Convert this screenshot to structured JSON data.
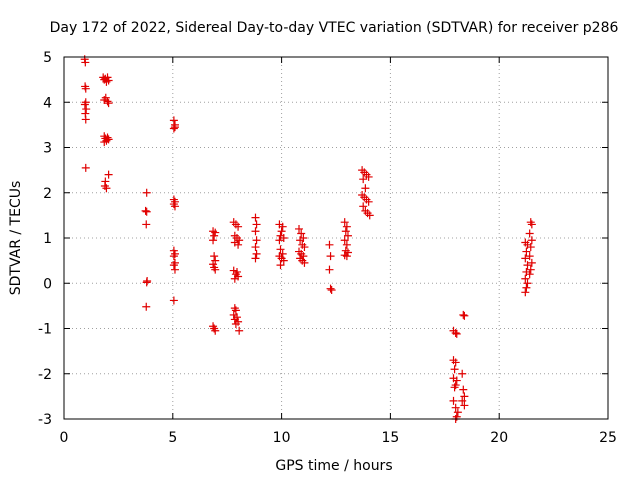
{
  "chart_data": {
    "type": "scatter",
    "title": "Day 172 of 2022, Sidereal Day-to-day VTEC variation (SDTVAR) for receiver p286",
    "xlabel": "GPS time / hours",
    "ylabel": "SDTVAR / TECUs",
    "xlim": [
      0,
      25
    ],
    "ylim": [
      -3,
      5
    ],
    "xticks": [
      0,
      5,
      10,
      15,
      20,
      25
    ],
    "yticks": [
      -3,
      -2,
      -1,
      0,
      1,
      2,
      3,
      4,
      5
    ],
    "xtick_labels": [
      "0",
      "5",
      "10",
      "15",
      "20",
      "25"
    ],
    "ytick_labels": [
      "-3",
      "-2",
      "-1",
      "0",
      "1",
      "2",
      "3",
      "4",
      "5"
    ],
    "grid": true,
    "marker": "+",
    "color": "#e00000",
    "series": [
      {
        "name": "p286",
        "points": [
          [
            0.95,
            4.95
          ],
          [
            0.98,
            4.88
          ],
          [
            1.0,
            4.3
          ],
          [
            0.97,
            4.35
          ],
          [
            1.0,
            4.0
          ],
          [
            0.96,
            3.95
          ],
          [
            1.02,
            3.85
          ],
          [
            0.98,
            3.75
          ],
          [
            1.0,
            3.62
          ],
          [
            1.0,
            2.55
          ],
          [
            1.8,
            4.55
          ],
          [
            1.85,
            4.5
          ],
          [
            1.9,
            4.52
          ],
          [
            1.95,
            4.45
          ],
          [
            2.0,
            4.55
          ],
          [
            2.05,
            4.48
          ],
          [
            1.85,
            4.05
          ],
          [
            1.92,
            4.1
          ],
          [
            2.0,
            4.02
          ],
          [
            2.05,
            3.98
          ],
          [
            1.85,
            3.25
          ],
          [
            1.9,
            3.2
          ],
          [
            1.95,
            3.15
          ],
          [
            2.0,
            3.22
          ],
          [
            2.05,
            3.18
          ],
          [
            1.85,
            3.12
          ],
          [
            2.05,
            2.4
          ],
          [
            1.9,
            2.25
          ],
          [
            1.88,
            2.15
          ],
          [
            1.95,
            2.1
          ],
          [
            3.8,
            2.0
          ],
          [
            3.75,
            1.6
          ],
          [
            3.8,
            1.58
          ],
          [
            3.78,
            1.3
          ],
          [
            3.82,
            0.05
          ],
          [
            3.8,
            0.02
          ],
          [
            3.78,
            -0.52
          ],
          [
            5.05,
            3.6
          ],
          [
            5.1,
            3.5
          ],
          [
            5.05,
            3.42
          ],
          [
            5.1,
            3.45
          ],
          [
            5.05,
            1.85
          ],
          [
            5.1,
            1.8
          ],
          [
            5.05,
            1.75
          ],
          [
            5.1,
            1.7
          ],
          [
            5.05,
            0.72
          ],
          [
            5.1,
            0.65
          ],
          [
            5.05,
            0.6
          ],
          [
            5.1,
            0.45
          ],
          [
            5.05,
            0.4
          ],
          [
            5.1,
            0.3
          ],
          [
            5.05,
            -0.38
          ],
          [
            6.85,
            1.15
          ],
          [
            6.95,
            1.12
          ],
          [
            6.9,
            1.05
          ],
          [
            6.85,
            0.95
          ],
          [
            6.9,
            0.6
          ],
          [
            6.95,
            0.5
          ],
          [
            6.85,
            0.42
          ],
          [
            6.9,
            0.35
          ],
          [
            6.95,
            0.3
          ],
          [
            6.85,
            -0.95
          ],
          [
            6.9,
            -1.0
          ],
          [
            6.95,
            -1.05
          ],
          [
            7.8,
            1.35
          ],
          [
            7.9,
            1.3
          ],
          [
            8.0,
            1.25
          ],
          [
            7.85,
            1.05
          ],
          [
            7.95,
            1.0
          ],
          [
            8.05,
            0.95
          ],
          [
            7.85,
            0.9
          ],
          [
            8.0,
            0.85
          ],
          [
            7.8,
            0.28
          ],
          [
            7.9,
            0.2
          ],
          [
            8.0,
            0.15
          ],
          [
            7.85,
            0.1
          ],
          [
            7.95,
            0.25
          ],
          [
            7.85,
            -0.55
          ],
          [
            7.9,
            -0.6
          ],
          [
            7.8,
            -0.7
          ],
          [
            7.95,
            -0.75
          ],
          [
            7.85,
            -0.8
          ],
          [
            8.0,
            -0.85
          ],
          [
            7.9,
            -0.9
          ],
          [
            8.05,
            -1.05
          ],
          [
            8.8,
            1.45
          ],
          [
            8.85,
            1.3
          ],
          [
            8.8,
            1.15
          ],
          [
            8.85,
            0.95
          ],
          [
            8.8,
            0.8
          ],
          [
            8.85,
            0.65
          ],
          [
            8.8,
            0.55
          ],
          [
            9.9,
            1.3
          ],
          [
            10.05,
            1.25
          ],
          [
            10.0,
            1.15
          ],
          [
            9.95,
            1.05
          ],
          [
            10.1,
            1.0
          ],
          [
            9.9,
            0.95
          ],
          [
            9.95,
            0.75
          ],
          [
            10.05,
            0.65
          ],
          [
            9.9,
            0.6
          ],
          [
            10.0,
            0.55
          ],
          [
            10.1,
            0.5
          ],
          [
            9.95,
            0.4
          ],
          [
            10.8,
            1.2
          ],
          [
            10.9,
            1.1
          ],
          [
            11.0,
            1.0
          ],
          [
            10.85,
            0.95
          ],
          [
            10.95,
            0.85
          ],
          [
            11.05,
            0.8
          ],
          [
            10.8,
            0.7
          ],
          [
            10.9,
            0.65
          ],
          [
            11.0,
            0.6
          ],
          [
            10.85,
            0.55
          ],
          [
            10.95,
            0.5
          ],
          [
            11.05,
            0.45
          ],
          [
            12.2,
            0.85
          ],
          [
            12.25,
            0.6
          ],
          [
            12.2,
            0.3
          ],
          [
            12.25,
            -0.12
          ],
          [
            12.3,
            -0.15
          ],
          [
            12.9,
            1.35
          ],
          [
            13.0,
            1.25
          ],
          [
            12.95,
            1.15
          ],
          [
            13.05,
            1.05
          ],
          [
            12.9,
            0.95
          ],
          [
            13.0,
            0.85
          ],
          [
            12.95,
            0.72
          ],
          [
            13.05,
            0.68
          ],
          [
            12.9,
            0.62
          ],
          [
            13.0,
            0.6
          ],
          [
            13.7,
            2.5
          ],
          [
            13.8,
            2.45
          ],
          [
            13.9,
            2.4
          ],
          [
            14.0,
            2.35
          ],
          [
            13.75,
            2.3
          ],
          [
            13.85,
            2.1
          ],
          [
            13.7,
            1.95
          ],
          [
            13.8,
            1.9
          ],
          [
            13.9,
            1.85
          ],
          [
            14.0,
            1.8
          ],
          [
            13.75,
            1.7
          ],
          [
            13.85,
            1.6
          ],
          [
            13.95,
            1.55
          ],
          [
            14.05,
            1.5
          ],
          [
            17.9,
            -1.05
          ],
          [
            18.0,
            -1.1
          ],
          [
            18.05,
            -1.12
          ],
          [
            17.9,
            -1.7
          ],
          [
            18.0,
            -1.75
          ],
          [
            17.95,
            -1.9
          ],
          [
            17.9,
            -2.1
          ],
          [
            18.05,
            -2.15
          ],
          [
            18.0,
            -2.25
          ],
          [
            17.95,
            -2.3
          ],
          [
            17.9,
            -2.6
          ],
          [
            18.0,
            -2.75
          ],
          [
            18.1,
            -2.85
          ],
          [
            18.05,
            -2.95
          ],
          [
            18.0,
            -3.0
          ],
          [
            18.35,
            -0.7
          ],
          [
            18.4,
            -0.72
          ],
          [
            18.3,
            -2.0
          ],
          [
            18.35,
            -2.35
          ],
          [
            18.4,
            -2.5
          ],
          [
            18.3,
            -2.6
          ],
          [
            18.4,
            -2.7
          ],
          [
            21.2,
            0.9
          ],
          [
            21.3,
            0.85
          ],
          [
            21.25,
            0.7
          ],
          [
            21.2,
            0.55
          ],
          [
            21.3,
            0.4
          ],
          [
            21.25,
            0.25
          ],
          [
            21.2,
            0.1
          ],
          [
            21.3,
            0.0
          ],
          [
            21.25,
            -0.1
          ],
          [
            21.2,
            -0.2
          ],
          [
            21.45,
            1.35
          ],
          [
            21.5,
            1.3
          ],
          [
            21.4,
            1.1
          ],
          [
            21.5,
            0.95
          ],
          [
            21.45,
            0.8
          ],
          [
            21.4,
            0.6
          ],
          [
            21.5,
            0.45
          ],
          [
            21.45,
            0.3
          ],
          [
            21.4,
            0.2
          ]
        ]
      }
    ]
  }
}
